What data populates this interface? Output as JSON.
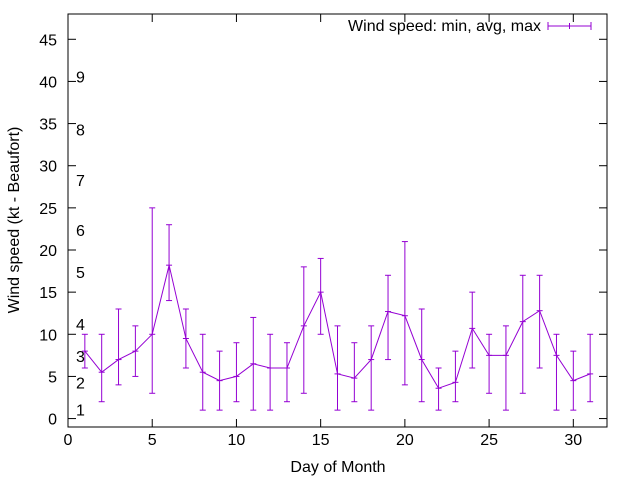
{
  "chart_data": {
    "type": "line",
    "title": "",
    "xlabel": "Day of Month",
    "ylabel": "Wind speed (kt - Beaufort)",
    "xlim": [
      0,
      32
    ],
    "ylim": [
      -1,
      48
    ],
    "xticks": [
      0,
      5,
      10,
      15,
      20,
      25,
      30
    ],
    "yticks": [
      0,
      5,
      10,
      15,
      20,
      25,
      30,
      35,
      40,
      45
    ],
    "grid": false,
    "legend": {
      "label": "Wind speed: min, avg, max",
      "placement": "top-right"
    },
    "series_color": "#9400d3",
    "series": [
      {
        "name": "Wind speed: min, avg, max",
        "x": [
          1,
          2,
          3,
          4,
          5,
          6,
          7,
          8,
          9,
          10,
          11,
          12,
          13,
          14,
          15,
          16,
          17,
          18,
          19,
          20,
          21,
          22,
          23,
          24,
          25,
          26,
          27,
          28,
          29,
          30,
          31
        ],
        "avg": [
          8,
          5.5,
          7,
          8,
          10,
          18.2,
          9.5,
          5.5,
          4.5,
          5,
          6.5,
          6,
          6,
          11,
          15,
          5.3,
          4.8,
          7,
          12.7,
          12.2,
          7,
          3.6,
          4.3,
          10.7,
          7.5,
          7.5,
          11.5,
          12.8,
          7.5,
          4.5,
          5.3
        ],
        "min": [
          6,
          2,
          4,
          5,
          3,
          14,
          6,
          1,
          1,
          2,
          1,
          1,
          2,
          3,
          10,
          1,
          2,
          1,
          7,
          4,
          2,
          1,
          2,
          6,
          3,
          1,
          3,
          6,
          1,
          1,
          2
        ],
        "max": [
          10,
          10,
          13,
          11,
          25,
          23,
          13,
          10,
          8,
          9,
          12,
          10,
          9,
          18,
          19,
          11,
          9,
          11,
          17,
          21,
          13,
          6,
          8,
          15,
          10,
          11,
          17,
          17,
          10,
          8,
          10
        ]
      }
    ],
    "annotations": [
      {
        "text": "1",
        "y": 1.1
      },
      {
        "text": "2",
        "y": 4.3
      },
      {
        "text": "3",
        "y": 7.4
      },
      {
        "text": "4",
        "y": 11.2
      },
      {
        "text": "5",
        "y": 17.4
      },
      {
        "text": "6",
        "y": 22.4
      },
      {
        "text": "7",
        "y": 28.3
      },
      {
        "text": "8",
        "y": 34.3
      },
      {
        "text": "9",
        "y": 40.6
      }
    ]
  }
}
